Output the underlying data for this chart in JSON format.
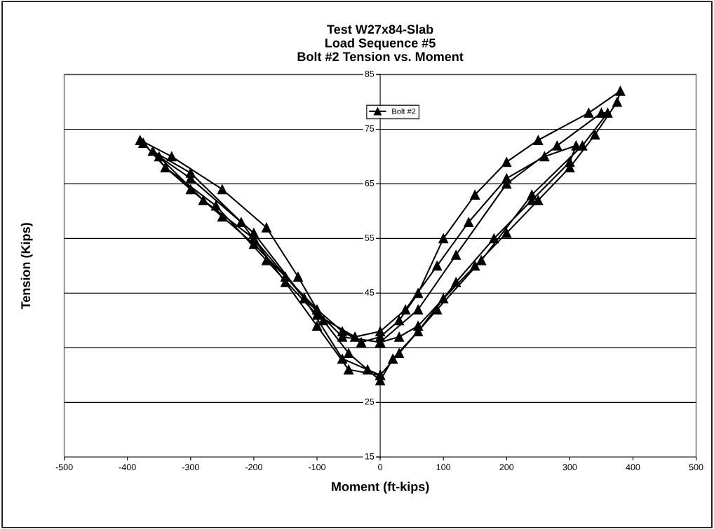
{
  "chart_data": {
    "type": "line",
    "title": "Test W27x84-Slab\nLoad Sequence #5\nBolt #2 Tension vs. Moment",
    "xlabel": "Moment (ft-kips)",
    "ylabel": "Tension (Kips)",
    "series": [
      {
        "name": "Bolt #2",
        "color": "#000000",
        "x": [
          0,
          30,
          60,
          100,
          150,
          200,
          250,
          300,
          340,
          375,
          380,
          330,
          250,
          200,
          150,
          100,
          60,
          30,
          0,
          -30,
          -60,
          -100,
          -150,
          -200,
          -250,
          -300,
          -340,
          -375,
          -380,
          -330,
          -250,
          -180,
          -130,
          -90,
          -50,
          -20,
          0,
          20,
          60,
          120,
          180,
          240,
          300,
          310,
          260,
          200,
          140,
          90,
          40,
          0,
          -40,
          -100,
          -180,
          -260,
          -340,
          -360,
          -300,
          -220,
          -150,
          -100,
          -50,
          0,
          30,
          90,
          160,
          240,
          320,
          360,
          350,
          280,
          200,
          120,
          60,
          0,
          -60,
          -120,
          -200,
          -280,
          -350,
          -300,
          -200,
          -120,
          -60,
          0
        ],
        "values": [
          36,
          37,
          39,
          44,
          50,
          56,
          62,
          68,
          74,
          80,
          82,
          78,
          73,
          69,
          63,
          55,
          45,
          40,
          37,
          36,
          38,
          42,
          48,
          54,
          59,
          64,
          68,
          72.5,
          73,
          70,
          64,
          57,
          48,
          40,
          34,
          31,
          29,
          33,
          38,
          47,
          55,
          62,
          69,
          72,
          70,
          66,
          58,
          50,
          42,
          38,
          37,
          41,
          51,
          61,
          68,
          71,
          67,
          58,
          47,
          39,
          31,
          30,
          34,
          42,
          51,
          63,
          72,
          78,
          78,
          72,
          65,
          52,
          42,
          36,
          37,
          44,
          55,
          62,
          70,
          66,
          56,
          44,
          33,
          30
        ]
      }
    ],
    "xlim": [
      -500,
      500
    ],
    "ylim": [
      15,
      85
    ],
    "xticks": [
      -500,
      -400,
      -300,
      -200,
      -100,
      0,
      100,
      200,
      300,
      400,
      500
    ],
    "yticks": [
      15,
      25,
      {
        "value": 35,
        "label": null
      },
      45,
      55,
      65,
      75,
      85
    ],
    "grid": "y",
    "legend": "top",
    "marker": "triangle",
    "line_style": "solid"
  }
}
